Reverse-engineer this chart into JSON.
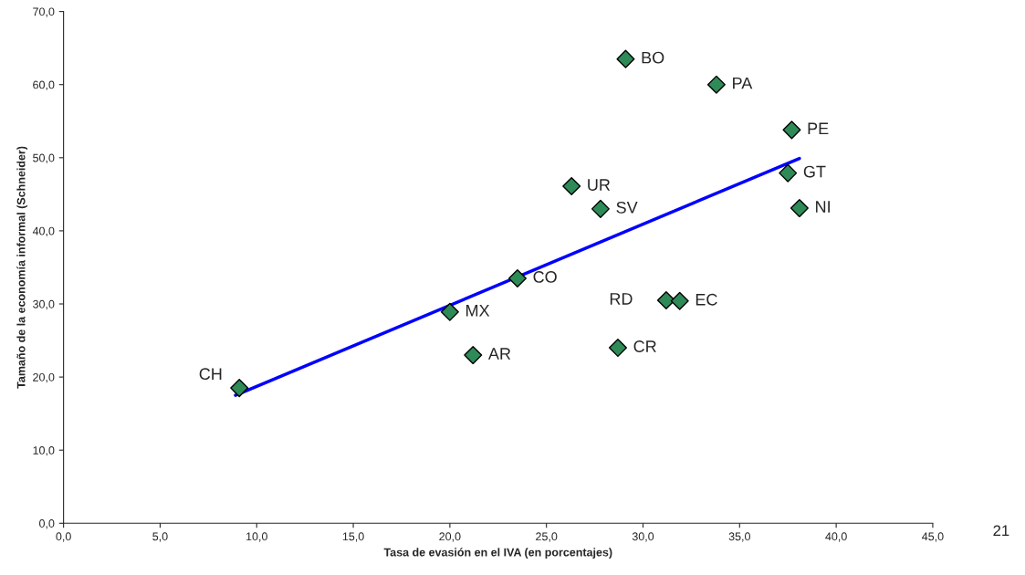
{
  "chart_data": {
    "type": "scatter",
    "xlabel": "Tasa de evasión en el IVA (en porcentajes)",
    "ylabel": "Tamaño de la economía informal (Schneider)",
    "grid": false,
    "series": [
      {
        "marker": "diamond",
        "color": "#2e8b57",
        "x": [
          9.1,
          20.0,
          21.2,
          23.5,
          26.3,
          27.8,
          29.1,
          28.7,
          31.2,
          31.9,
          33.8,
          37.7,
          37.5,
          38.1
        ],
        "values": [
          18.5,
          28.9,
          23.0,
          33.5,
          46.1,
          43.0,
          63.5,
          24.0,
          30.5,
          30.4,
          60.0,
          53.8,
          47.9,
          43.1
        ]
      },
      {
        "type": "line",
        "color": "#0000ff",
        "x": [
          8.9,
          38.1
        ],
        "values": [
          17.5,
          49.9
        ]
      }
    ],
    "annotations": [
      {
        "text": "CH",
        "x": 9.1,
        "y": 18.5
      },
      {
        "text": "MX",
        "x": 20.0,
        "y": 28.9
      },
      {
        "text": "AR",
        "x": 21.2,
        "y": 23.0
      },
      {
        "text": "CO",
        "x": 23.5,
        "y": 33.5
      },
      {
        "text": "UR",
        "x": 26.3,
        "y": 46.1
      },
      {
        "text": "SV",
        "x": 27.8,
        "y": 43.0
      },
      {
        "text": "BO",
        "x": 29.1,
        "y": 63.5
      },
      {
        "text": "CR",
        "x": 28.7,
        "y": 24.0
      },
      {
        "text": "RD",
        "x": 31.2,
        "y": 30.5
      },
      {
        "text": "EC",
        "x": 31.9,
        "y": 30.4
      },
      {
        "text": "PA",
        "x": 33.8,
        "y": 60.0
      },
      {
        "text": "PE",
        "x": 37.7,
        "y": 53.8
      },
      {
        "text": "GT",
        "x": 37.5,
        "y": 47.9
      },
      {
        "text": "NI",
        "x": 38.1,
        "y": 43.1
      },
      "21"
    ],
    "xlim": [
      0,
      45
    ],
    "ylim": [
      0,
      70
    ],
    "xticks": [
      {
        "value": 0,
        "label": "0,0"
      },
      {
        "value": 5,
        "label": "5,0"
      },
      {
        "value": 10,
        "label": "10,0"
      },
      {
        "value": 15,
        "label": "15,0"
      },
      {
        "value": 20,
        "label": "20,0"
      },
      {
        "value": 25,
        "label": "25,0"
      },
      {
        "value": 30,
        "label": "30,0"
      },
      {
        "value": 35,
        "label": "35,0"
      },
      {
        "value": 40,
        "label": "40,0"
      },
      {
        "value": 45,
        "label": "45,0"
      }
    ],
    "yticks": [
      {
        "value": 0,
        "label": "0,0"
      },
      {
        "value": 10,
        "label": "10,0"
      },
      {
        "value": 20,
        "label": "20,0"
      },
      {
        "value": 30,
        "label": "30,0"
      },
      {
        "value": 40,
        "label": "40,0"
      },
      {
        "value": 50,
        "label": "50,0"
      },
      {
        "value": 60,
        "label": "60,0"
      },
      {
        "value": 70,
        "label": "70,0"
      }
    ]
  }
}
